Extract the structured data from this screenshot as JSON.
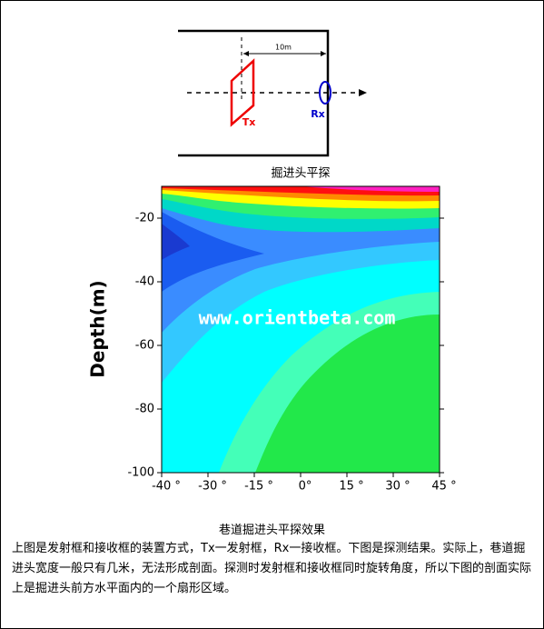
{
  "diagram": {
    "distance_label": "10m",
    "tx_label": "Tx",
    "rx_label": "Rx"
  },
  "figure": {
    "title": "掘进头平探",
    "y_axis_label": "Depth(m)",
    "yticks": [
      "-20",
      "-40",
      "-60",
      "-80",
      "-100"
    ],
    "xticks": [
      "-40 °",
      "-30 °",
      "-15 °",
      "0°",
      "15 °",
      "30 °",
      "45 °"
    ],
    "watermark": "www.orientbeta.com"
  },
  "caption": "巷道掘进头平探效果",
  "body": "上图是发射框和接收框的装置方式，Tx一发射框，Rx一接收框。下图是探测结果。实际上，巷道掘进头宽度一般只有几米，无法形成剖面。探测时发射框和接收框同时旋转角度，所以下图的剖面实际上是掘进头前方水平面内的一个扇形区域。"
}
